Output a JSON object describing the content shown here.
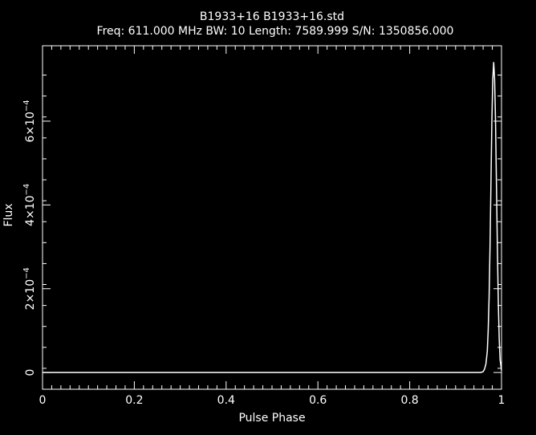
{
  "chart_data": {
    "type": "line",
    "title": "B1933+16 B1933+16.std",
    "subtitle": "Freq: 611.000 MHz BW: 10 Length: 7589.999 S/N: 1350856.000",
    "xlabel": "Pulse Phase",
    "ylabel": "Flux",
    "xlim": [
      0,
      1
    ],
    "ylim": [
      -4e-05,
      0.00078
    ],
    "x_ticks": [
      0,
      0.2,
      0.4,
      0.6,
      0.8,
      1
    ],
    "x_tick_labels": [
      "0",
      "0.2",
      "0.4",
      "0.6",
      "0.8",
      "1"
    ],
    "y_ticks": [
      0,
      0.0002,
      0.0004,
      0.0006
    ],
    "y_tick_labels": [
      {
        "base": "0",
        "exp": ""
      },
      {
        "base": "2×10",
        "exp": "−4"
      },
      {
        "base": "4×10",
        "exp": "−4"
      },
      {
        "base": "6×10",
        "exp": "−4"
      }
    ],
    "grid": false,
    "background": "#000000",
    "foreground": "#ffffff",
    "series": [
      {
        "x": [
          0,
          0.9,
          0.955,
          0.96,
          0.963,
          0.966,
          0.969,
          0.971,
          0.973,
          0.975,
          0.977,
          0.979,
          0.981,
          0.983,
          0.985,
          0.987,
          0.989,
          0.991,
          0.993,
          0.995,
          0.997,
          1.0
        ],
        "y": [
          0,
          0,
          0,
          2e-06,
          8e-06,
          2e-05,
          5e-05,
          0.0001,
          0.00018,
          0.0003,
          0.00045,
          0.0006,
          0.0007,
          0.00074,
          0.0007,
          0.0006,
          0.00045,
          0.0003,
          0.00017,
          8e-05,
          3e-05,
          5e-06
        ]
      }
    ]
  }
}
